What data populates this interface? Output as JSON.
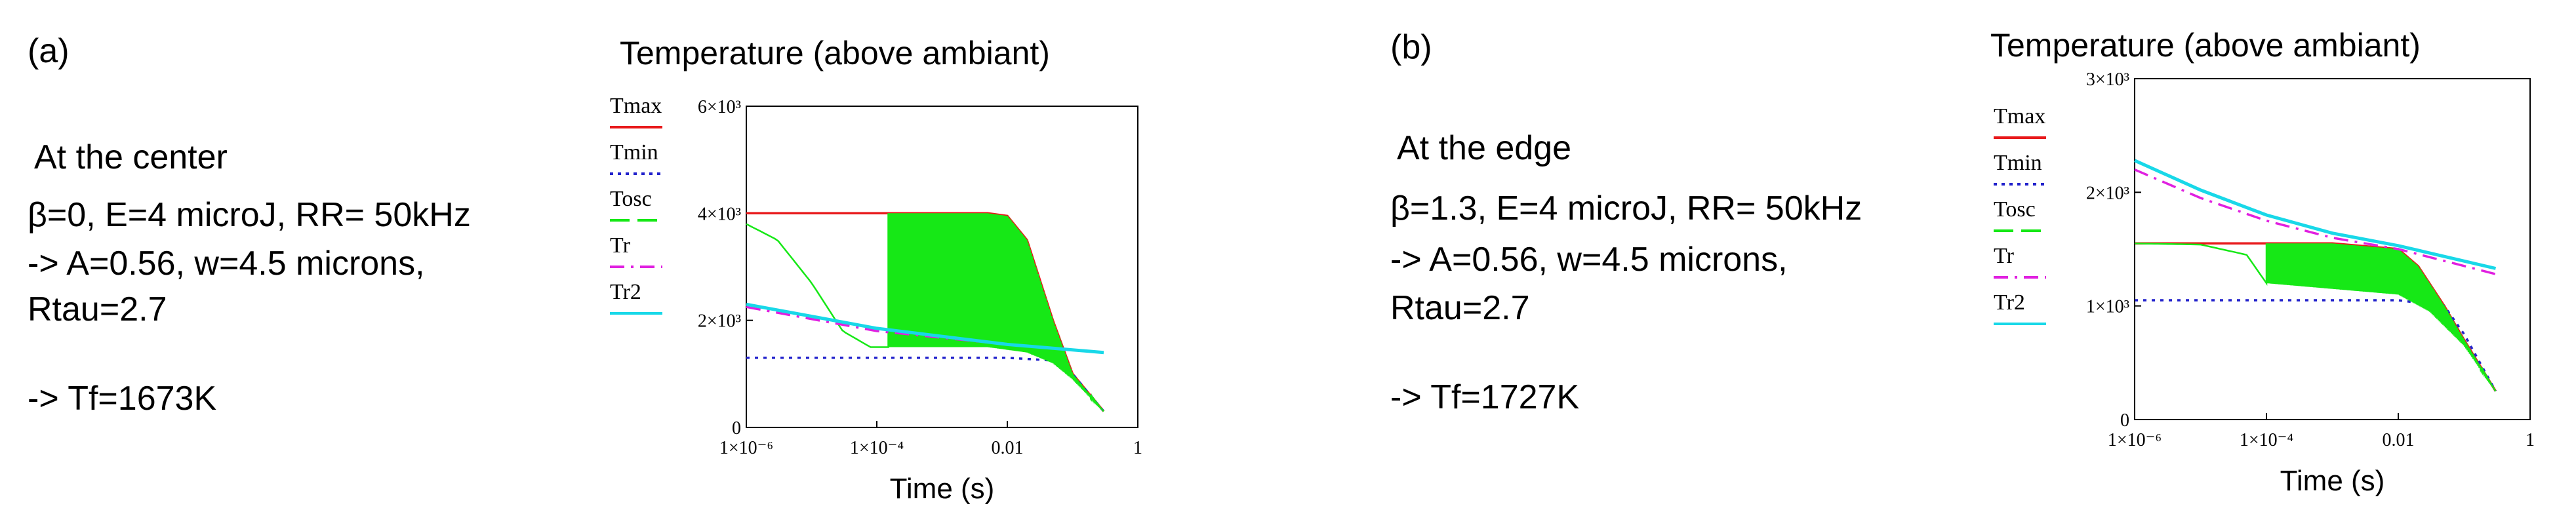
{
  "panels": [
    {
      "tag": "(a)",
      "lines": [
        "At the center",
        "β=0, E=4 microJ, RR= 50kHz",
        "-> A=0.56, w=4.5 microns,",
        "Rtau=2.7",
        "-> Tf=1673K"
      ]
    },
    {
      "tag": "(b)",
      "lines": [
        "At the edge",
        "β=1.3, E=4 microJ, RR= 50kHz",
        "-> A=0.56, w=4.5 microns,",
        "Rtau=2.7",
        "-> Tf=1727K"
      ]
    }
  ],
  "colors": {
    "Tmax": "#e8191b",
    "Tmin": "#2222cc",
    "Tosc": "#16e816",
    "Tr": "#e020e0",
    "Tr2": "#18d8e8"
  },
  "chart_data": [
    {
      "type": "line",
      "title": "Temperature (above ambiant)",
      "xlabel": "Time (s)",
      "ylabel": "",
      "x_scale": "log",
      "xlim": [
        1e-06,
        1
      ],
      "ylim": [
        0,
        6000
      ],
      "x_ticks": [
        "1×10⁻⁶",
        "1×10⁻⁴",
        "0.01",
        "1"
      ],
      "y_ticks": [
        "0",
        "2×10³",
        "4×10³",
        "6×10³"
      ],
      "legend": [
        "Tmax",
        "Tmin",
        "Tosc",
        "Tr",
        "Tr2"
      ],
      "legend_placement": "left",
      "series": [
        {
          "name": "Tmax",
          "x": [
            1e-06,
            1e-05,
            0.0001,
            0.001,
            0.005,
            0.01,
            0.02,
            0.05,
            0.1,
            0.3
          ],
          "y": [
            4000,
            4000,
            4000,
            4000,
            4000,
            3950,
            3500,
            2000,
            1000,
            300
          ]
        },
        {
          "name": "Tmin",
          "x": [
            1e-06,
            0.0001,
            0.01,
            0.05,
            0.1,
            0.3
          ],
          "y": [
            1300,
            1300,
            1300,
            1250,
            1000,
            300
          ]
        },
        {
          "name": "Tosc",
          "x": [
            1e-06,
            3e-06,
            1e-05,
            3e-05,
            8e-05,
            0.0002,
            0.001,
            0.005,
            0.01,
            0.02,
            0.05,
            0.1,
            0.3
          ],
          "y": [
            3800,
            3500,
            2700,
            1800,
            1500,
            1500,
            1500,
            1500,
            1450,
            1400,
            1200,
            900,
            300
          ]
        },
        {
          "name": "Tr",
          "x": [
            1e-06,
            0.0001,
            0.01,
            0.3
          ],
          "y": [
            2250,
            1800,
            1550,
            1400
          ]
        },
        {
          "name": "Tr2",
          "x": [
            1e-06,
            0.0001,
            0.01,
            0.3
          ],
          "y": [
            2300,
            1850,
            1550,
            1400
          ]
        }
      ]
    },
    {
      "type": "line",
      "title": "Temperature (above ambiant)",
      "xlabel": "Time (s)",
      "ylabel": "",
      "x_scale": "log",
      "xlim": [
        1e-06,
        1
      ],
      "ylim": [
        0,
        3000
      ],
      "x_ticks": [
        "1×10⁻⁶",
        "1×10⁻⁴",
        "0.01",
        "1"
      ],
      "y_ticks": [
        "0",
        "1×10³",
        "2×10³",
        "3×10³"
      ],
      "legend": [
        "Tmax",
        "Tmin",
        "Tosc",
        "Tr",
        "Tr2"
      ],
      "legend_placement": "left",
      "series": [
        {
          "name": "Tmax",
          "x": [
            1e-06,
            0.0001,
            0.001,
            0.01,
            0.02,
            0.05,
            0.1,
            0.3
          ],
          "y": [
            1550,
            1550,
            1550,
            1500,
            1350,
            1000,
            700,
            250
          ]
        },
        {
          "name": "Tmin",
          "x": [
            1e-06,
            0.0001,
            0.01,
            0.05,
            0.1,
            0.3
          ],
          "y": [
            1050,
            1050,
            1050,
            1000,
            750,
            250
          ]
        },
        {
          "name": "Tosc",
          "x": [
            1e-06,
            1e-05,
            5e-05,
            0.0001,
            0.001,
            0.01,
            0.03,
            0.1,
            0.3
          ],
          "y": [
            1550,
            1540,
            1450,
            1200,
            1150,
            1100,
            950,
            650,
            250
          ]
        },
        {
          "name": "Tr",
          "x": [
            1e-06,
            1e-05,
            0.0001,
            0.001,
            0.01,
            0.3
          ],
          "y": [
            2200,
            1950,
            1750,
            1600,
            1500,
            1280
          ]
        },
        {
          "name": "Tr2",
          "x": [
            1e-06,
            1e-05,
            0.0001,
            0.001,
            0.01,
            0.3
          ],
          "y": [
            2280,
            2020,
            1800,
            1640,
            1530,
            1330
          ]
        }
      ]
    }
  ]
}
